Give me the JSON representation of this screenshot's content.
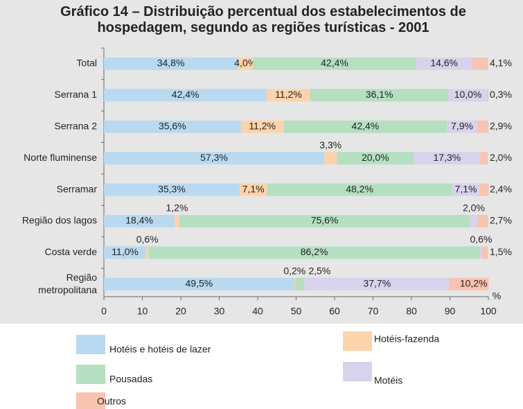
{
  "chart_data": {
    "type": "stacked_bar_horizontal",
    "title": "Gráfico 14 – Distribuição percentual dos estabelecimentos de hospedagem, segundo as regiões turísticas - 2001",
    "categories": [
      "Total",
      "Serrana 1",
      "Serrana 2",
      "Norte fluminense",
      "Serramar",
      "Região dos lagos",
      "Costa verde",
      "Região metropolitana"
    ],
    "series": [
      {
        "name": "Hotéis e hotéis de lazer",
        "color": "#b9d9f1",
        "values": [
          34.8,
          42.4,
          35.6,
          57.3,
          35.3,
          18.4,
          11.0,
          49.5
        ],
        "value_labels": [
          "34,8%",
          "42,4%",
          "35,6%",
          "57,3%",
          "35,3%",
          "18,4%",
          "11,0%",
          "49,5%"
        ]
      },
      {
        "name": "Hotéis-fazenda",
        "color": "#fcd3ab",
        "values": [
          4.0,
          11.2,
          11.2,
          3.3,
          7.1,
          1.2,
          0.6,
          0.2
        ],
        "value_labels": [
          "4,0%",
          "11,2%",
          "11,2%",
          "3,3%",
          "7,1%",
          "1,2%",
          "0,6%",
          "0,2%"
        ]
      },
      {
        "name": "Pousadas",
        "color": "#b5dfc1",
        "values": [
          42.4,
          36.1,
          42.4,
          20.0,
          48.2,
          75.6,
          86.2,
          2.5
        ],
        "value_labels": [
          "42,4%",
          "36,1%",
          "42,4%",
          "20,0%",
          "48,2%",
          "75,6%",
          "86,2%",
          "2,5%"
        ]
      },
      {
        "name": "Motéis",
        "color": "#d9d2ed",
        "values": [
          14.6,
          10.0,
          7.9,
          17.3,
          7.1,
          2.0,
          0.6,
          37.7
        ],
        "value_labels": [
          "14,6%",
          "10,0%",
          "7,9%",
          "17,3%",
          "7,1%",
          "2,0%",
          "0,6%",
          "37,7%"
        ]
      },
      {
        "name": "Outros",
        "color": "#f9c3b1",
        "values": [
          4.1,
          0.3,
          2.9,
          2.0,
          2.4,
          2.7,
          1.5,
          10.2
        ],
        "value_labels": [
          "4,1%",
          "0,3%",
          "2,9%",
          "2,0%",
          "2,4%",
          "2,7%",
          "1,5%",
          "10,2%"
        ]
      }
    ],
    "xlabel": "%",
    "xlim": [
      0,
      100
    ],
    "xticks": [
      0,
      10,
      20,
      30,
      40,
      50,
      60,
      70,
      80,
      90,
      100
    ]
  }
}
